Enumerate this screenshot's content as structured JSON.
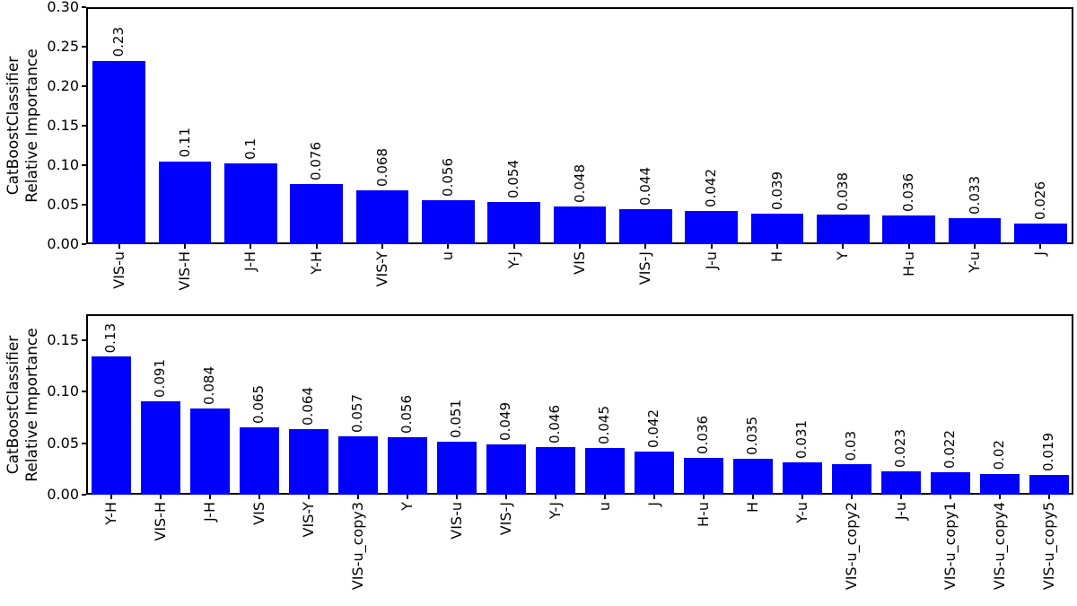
{
  "figure": {
    "background": "#ffffff",
    "bar_color": "#0000ff",
    "text_color": "#000000"
  },
  "chart_data": [
    {
      "type": "bar",
      "title": "",
      "xlabel": "",
      "ylabel": "CatBoostClassifier Relative Importance",
      "ylabel_lines": [
        "CatBoostClassifier",
        "Relative Importance"
      ],
      "ylim": [
        0,
        0.3
      ],
      "grid": false,
      "legend": null,
      "bar_color": "#0000ff",
      "yticks": [
        0.0,
        0.05,
        0.1,
        0.15,
        0.2,
        0.25,
        0.3
      ],
      "ytick_labels": [
        "0.00",
        "0.05",
        "0.10",
        "0.15",
        "0.20",
        "0.25",
        "0.30"
      ],
      "categories": [
        "VIS-u",
        "VIS-H",
        "J-H",
        "Y-H",
        "VIS-Y",
        "u",
        "Y-J",
        "VIS",
        "VIS-J",
        "J-u",
        "H",
        "Y",
        "H-u",
        "Y-u",
        "J"
      ],
      "values": [
        0.232,
        0.105,
        0.102,
        0.076,
        0.068,
        0.056,
        0.054,
        0.048,
        0.044,
        0.042,
        0.039,
        0.038,
        0.036,
        0.033,
        0.026
      ],
      "value_labels": [
        "0.23",
        "0.11",
        "0.1",
        "0.076",
        "0.068",
        "0.056",
        "0.054",
        "0.048",
        "0.044",
        "0.042",
        "0.039",
        "0.038",
        "0.036",
        "0.033",
        "0.026"
      ]
    },
    {
      "type": "bar",
      "title": "",
      "xlabel": "",
      "ylabel": "CatBoostClassifier Relative Importance",
      "ylabel_lines": [
        "CatBoostClassifier",
        "Relative Importance"
      ],
      "ylim": [
        0,
        0.175
      ],
      "grid": false,
      "legend": null,
      "bar_color": "#0000ff",
      "yticks": [
        0.0,
        0.05,
        0.1,
        0.15
      ],
      "ytick_labels": [
        "0.00",
        "0.05",
        "0.10",
        "0.15"
      ],
      "categories": [
        "Y-H",
        "VIS-H",
        "J-H",
        "VIS",
        "VIS-Y",
        "VIS-u_copy3",
        "Y",
        "VIS-u",
        "VIS-J",
        "Y-J",
        "u",
        "J",
        "H-u",
        "H",
        "Y-u",
        "VIS-u_copy2",
        "J-u",
        "VIS-u_copy1",
        "VIS-u_copy4",
        "VIS-u_copy5"
      ],
      "values": [
        0.134,
        0.091,
        0.084,
        0.065,
        0.064,
        0.057,
        0.0555,
        0.051,
        0.049,
        0.046,
        0.045,
        0.042,
        0.036,
        0.035,
        0.031,
        0.0295,
        0.023,
        0.022,
        0.0205,
        0.019
      ],
      "value_labels": [
        "0.13",
        "0.091",
        "0.084",
        "0.065",
        "0.064",
        "0.057",
        "0.056",
        "0.051",
        "0.049",
        "0.046",
        "0.045",
        "0.042",
        "0.036",
        "0.035",
        "0.031",
        "0.03",
        "0.023",
        "0.022",
        "0.02",
        "0.019"
      ]
    }
  ]
}
